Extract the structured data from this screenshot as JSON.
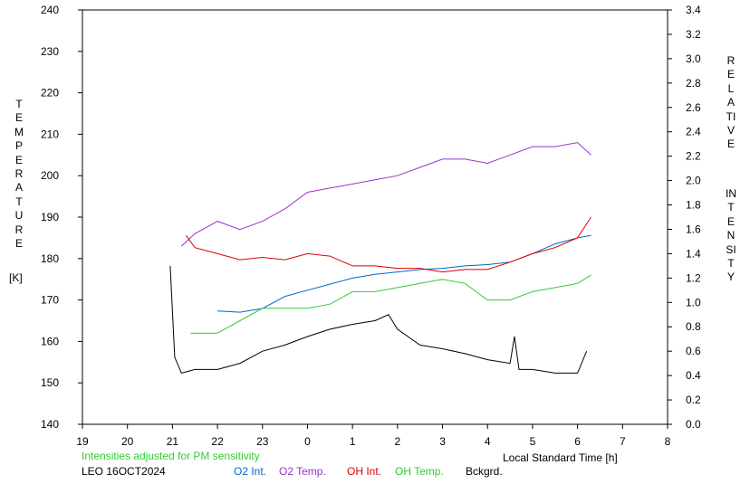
{
  "chart_data": {
    "type": "line",
    "left_axis": {
      "label_letters": "TEMPERATURE",
      "unit": "[K]",
      "ylim": [
        140,
        240
      ],
      "ticks": [
        "140",
        "150",
        "160",
        "170",
        "180",
        "190",
        "200",
        "210",
        "220",
        "230",
        "240"
      ]
    },
    "right_axis": {
      "label_words": [
        "RELATIVE",
        "INTENSITY"
      ],
      "ylim": [
        0.0,
        3.4
      ],
      "ticks": [
        "0.0",
        "0.2",
        "0.4",
        "0.6",
        "0.8",
        "1.0",
        "1.2",
        "1.4",
        "1.6",
        "1.8",
        "2.0",
        "2.2",
        "2.4",
        "2.6",
        "2.8",
        "3.0",
        "3.2",
        "3.4"
      ]
    },
    "x_axis": {
      "label": "Local Standard Time [h]",
      "ticks": [
        "19",
        "20",
        "21",
        "22",
        "23",
        "0",
        "1",
        "2",
        "3",
        "4",
        "5",
        "6",
        "7",
        "8"
      ],
      "xlim": [
        19,
        32
      ]
    },
    "note": "Intensities adjusted for PM sensitivity",
    "station": "LEO 16OCT2024",
    "grid": false,
    "series": [
      {
        "name": "O2 Int.",
        "color": "#0066cc",
        "axis": "right",
        "x": [
          22.0,
          22.5,
          23.0,
          23.5,
          24.0,
          24.5,
          25.0,
          25.5,
          26.0,
          26.5,
          27.0,
          27.5,
          28.0,
          28.5,
          29.0,
          29.5,
          30.0,
          30.3
        ],
        "y": [
          0.93,
          0.92,
          0.95,
          1.05,
          1.1,
          1.15,
          1.2,
          1.23,
          1.25,
          1.27,
          1.28,
          1.3,
          1.31,
          1.33,
          1.4,
          1.48,
          1.53,
          1.55
        ]
      },
      {
        "name": "O2 Temp.",
        "color": "#9933cc",
        "axis": "left",
        "x": [
          21.2,
          21.5,
          22.0,
          22.5,
          23.0,
          23.5,
          24.0,
          24.5,
          25.0,
          25.5,
          26.0,
          26.5,
          27.0,
          27.5,
          28.0,
          28.5,
          29.0,
          29.5,
          30.0,
          30.3
        ],
        "y": [
          183,
          186,
          189,
          187,
          189,
          192,
          196,
          197,
          198,
          199,
          200,
          202,
          204,
          204,
          203,
          205,
          207,
          207,
          208,
          205
        ]
      },
      {
        "name": "OH Int.",
        "color": "#dd0000",
        "axis": "right",
        "x": [
          21.3,
          21.5,
          22.0,
          22.5,
          23.0,
          23.5,
          24.0,
          24.5,
          25.0,
          25.5,
          26.0,
          26.5,
          27.0,
          27.5,
          28.0,
          28.5,
          29.0,
          29.5,
          30.0,
          30.3
        ],
        "y": [
          1.55,
          1.45,
          1.4,
          1.35,
          1.37,
          1.35,
          1.4,
          1.38,
          1.3,
          1.3,
          1.28,
          1.28,
          1.25,
          1.27,
          1.27,
          1.33,
          1.4,
          1.45,
          1.53,
          1.7
        ]
      },
      {
        "name": "OH Temp.",
        "color": "#33cc33",
        "axis": "left",
        "x": [
          21.4,
          22.0,
          22.5,
          23.0,
          23.5,
          24.0,
          24.5,
          25.0,
          25.5,
          26.0,
          26.5,
          27.0,
          27.5,
          28.0,
          28.5,
          29.0,
          29.5,
          30.0,
          30.3
        ],
        "y": [
          162,
          162,
          165,
          168,
          168,
          168,
          169,
          172,
          172,
          173,
          174,
          175,
          174,
          170,
          170,
          172,
          173,
          174,
          176
        ]
      },
      {
        "name": "Bckgrd.",
        "color": "#000000",
        "axis": "right",
        "x": [
          20.95,
          21.05,
          21.2,
          21.5,
          22.0,
          22.5,
          23.0,
          23.5,
          24.0,
          24.5,
          25.0,
          25.5,
          25.8,
          26.0,
          26.5,
          27.0,
          27.5,
          28.0,
          28.5,
          28.6,
          28.7,
          29.0,
          29.5,
          30.0,
          30.2
        ],
        "y": [
          1.3,
          0.55,
          0.42,
          0.45,
          0.45,
          0.5,
          0.6,
          0.65,
          0.72,
          0.78,
          0.82,
          0.85,
          0.9,
          0.78,
          0.65,
          0.62,
          0.58,
          0.53,
          0.5,
          0.72,
          0.45,
          0.45,
          0.42,
          0.42,
          0.6
        ]
      }
    ]
  }
}
